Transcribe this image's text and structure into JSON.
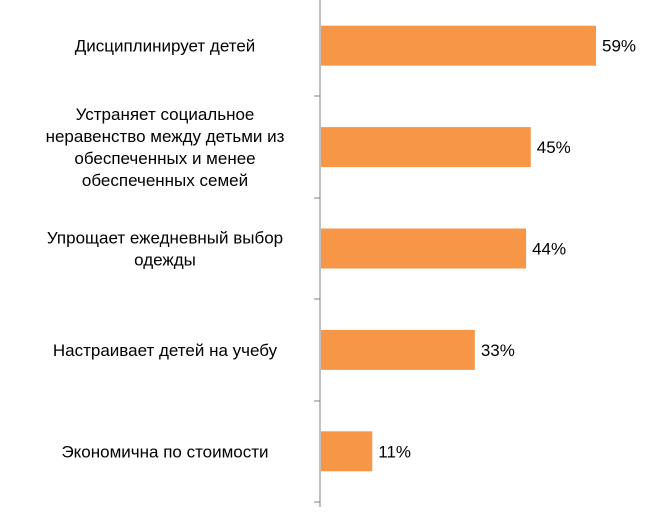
{
  "chart_data": {
    "type": "bar",
    "orientation": "horizontal",
    "categories": [
      "Дисциплинирует детей",
      "Устраняет социальное неравенство между детьми из обеспеченных и менее обеспеченных семей",
      "Упрощает ежедневный выбор одежды",
      "Настраивает детей на учебу",
      "Экономична по стоимости"
    ],
    "category_lines": [
      [
        "Дисциплинирует детей"
      ],
      [
        "Устраняет социальное",
        "неравенство между детьми из",
        "обеспеченных и менее",
        "обеспеченных семей"
      ],
      [
        "Упрощает ежедневный выбор",
        "одежды"
      ],
      [
        "Настраивает детей на учебу"
      ],
      [
        "Экономична по стоимости"
      ]
    ],
    "values": [
      59,
      45,
      44,
      33,
      11
    ],
    "value_labels": [
      "59%",
      "45%",
      "44%",
      "33%",
      "11%"
    ],
    "unit": "%",
    "xlim": [
      0,
      70
    ],
    "bar_color": "#F79646",
    "axis_color": "#7F7F7F",
    "title": "",
    "xlabel": "",
    "ylabel": "",
    "grid": false,
    "legend": "none"
  }
}
